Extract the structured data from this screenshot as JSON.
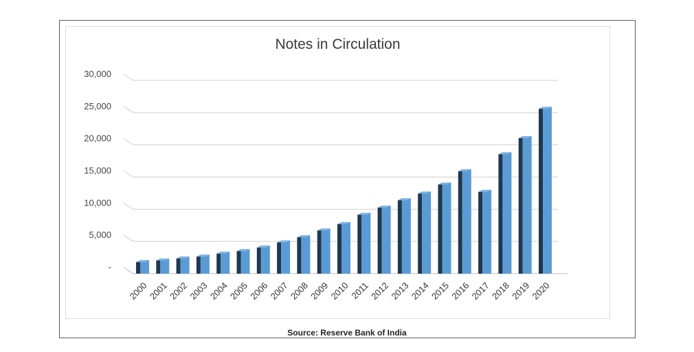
{
  "chart_data": {
    "type": "bar",
    "title": "Notes in Circulation",
    "categories": [
      "2000",
      "2001",
      "2002",
      "2003",
      "2004",
      "2005",
      "2006",
      "2007",
      "2008",
      "2009",
      "2010",
      "2011",
      "2012",
      "2013",
      "2014",
      "2015",
      "2016",
      "2017",
      "2018",
      "2019",
      "2020"
    ],
    "values": [
      2100,
      2350,
      2650,
      2950,
      3400,
      3800,
      4350,
      5150,
      5950,
      7000,
      8000,
      9450,
      10550,
      11700,
      12750,
      14150,
      16200,
      13000,
      18850,
      21350,
      25900
    ],
    "ylim": [
      0,
      30000
    ],
    "yticks": [
      "-",
      "5,000",
      "10,000",
      "15,000",
      "20,000",
      "25,000",
      "30,000"
    ],
    "grid": true,
    "bar_color": "#5b9bd5",
    "bar_dark_color": "#1f3850",
    "source": "Source: Reserve Bank of India"
  }
}
